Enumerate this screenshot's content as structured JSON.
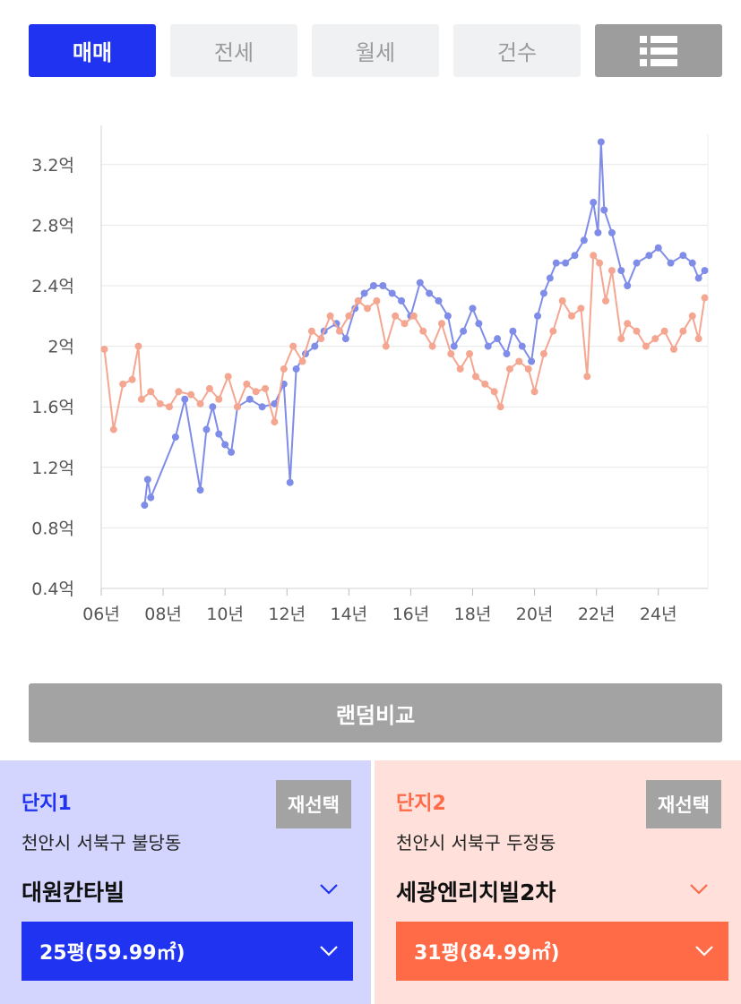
{
  "tabs": [
    {
      "label": "매매",
      "active": true
    },
    {
      "label": "전세",
      "active": false
    },
    {
      "label": "월세",
      "active": false
    },
    {
      "label": "건수",
      "active": false
    }
  ],
  "view_toggle_icon": "list-icon",
  "colors": {
    "accent_blue": "#1f33f0",
    "accent_orange": "#ff6a47",
    "series1_line": "#7f8ce8",
    "series2_line": "#f4a691"
  },
  "chart_data": {
    "type": "line",
    "title": "",
    "xlabel": "",
    "ylabel": "",
    "x_ticks": [
      "06년",
      "08년",
      "10년",
      "12년",
      "14년",
      "16년",
      "18년",
      "20년",
      "22년",
      "24년"
    ],
    "y_ticks": [
      "0.4억",
      "0.8억",
      "1.2억",
      "1.6억",
      "2억",
      "2.4억",
      "2.8억",
      "3.2억"
    ],
    "xlim": [
      2006.0,
      2025.6
    ],
    "ylim": [
      0.4,
      3.4
    ],
    "grid": true,
    "series": [
      {
        "name": "",
        "color": "#7f8ce8",
        "points": [
          [
            2007.4,
            0.95
          ],
          [
            2007.5,
            1.12
          ],
          [
            2007.6,
            1.0
          ],
          [
            2008.4,
            1.4
          ],
          [
            2008.7,
            1.65
          ],
          [
            2009.2,
            1.05
          ],
          [
            2009.4,
            1.45
          ],
          [
            2009.6,
            1.6
          ],
          [
            2009.8,
            1.42
          ],
          [
            2010.0,
            1.35
          ],
          [
            2010.2,
            1.3
          ],
          [
            2010.4,
            1.6
          ],
          [
            2010.8,
            1.65
          ],
          [
            2011.2,
            1.6
          ],
          [
            2011.6,
            1.62
          ],
          [
            2011.9,
            1.75
          ],
          [
            2012.1,
            1.1
          ],
          [
            2012.3,
            1.85
          ],
          [
            2012.6,
            1.95
          ],
          [
            2012.9,
            2.0
          ],
          [
            2013.2,
            2.1
          ],
          [
            2013.6,
            2.15
          ],
          [
            2013.9,
            2.05
          ],
          [
            2014.2,
            2.25
          ],
          [
            2014.5,
            2.35
          ],
          [
            2014.8,
            2.4
          ],
          [
            2015.1,
            2.4
          ],
          [
            2015.4,
            2.35
          ],
          [
            2015.7,
            2.3
          ],
          [
            2016.0,
            2.2
          ],
          [
            2016.3,
            2.42
          ],
          [
            2016.6,
            2.35
          ],
          [
            2016.9,
            2.3
          ],
          [
            2017.2,
            2.2
          ],
          [
            2017.4,
            2.0
          ],
          [
            2017.7,
            2.1
          ],
          [
            2018.0,
            2.25
          ],
          [
            2018.2,
            2.15
          ],
          [
            2018.5,
            2.0
          ],
          [
            2018.8,
            2.05
          ],
          [
            2019.1,
            1.95
          ],
          [
            2019.3,
            2.1
          ],
          [
            2019.6,
            2.0
          ],
          [
            2019.9,
            1.9
          ],
          [
            2020.1,
            2.2
          ],
          [
            2020.3,
            2.35
          ],
          [
            2020.5,
            2.45
          ],
          [
            2020.7,
            2.55
          ],
          [
            2021.0,
            2.55
          ],
          [
            2021.3,
            2.6
          ],
          [
            2021.6,
            2.7
          ],
          [
            2021.9,
            2.95
          ],
          [
            2022.05,
            2.75
          ],
          [
            2022.15,
            3.35
          ],
          [
            2022.25,
            2.9
          ],
          [
            2022.5,
            2.75
          ],
          [
            2022.8,
            2.5
          ],
          [
            2023.0,
            2.4
          ],
          [
            2023.3,
            2.55
          ],
          [
            2023.7,
            2.6
          ],
          [
            2024.0,
            2.65
          ],
          [
            2024.4,
            2.55
          ],
          [
            2024.8,
            2.6
          ],
          [
            2025.1,
            2.55
          ],
          [
            2025.3,
            2.45
          ],
          [
            2025.5,
            2.5
          ]
        ]
      },
      {
        "name": "",
        "color": "#f4a691",
        "points": [
          [
            2006.1,
            1.98
          ],
          [
            2006.4,
            1.45
          ],
          [
            2006.7,
            1.75
          ],
          [
            2007.0,
            1.78
          ],
          [
            2007.2,
            2.0
          ],
          [
            2007.3,
            1.65
          ],
          [
            2007.6,
            1.7
          ],
          [
            2007.9,
            1.62
          ],
          [
            2008.2,
            1.6
          ],
          [
            2008.5,
            1.7
          ],
          [
            2008.9,
            1.68
          ],
          [
            2009.2,
            1.62
          ],
          [
            2009.5,
            1.72
          ],
          [
            2009.8,
            1.65
          ],
          [
            2010.1,
            1.8
          ],
          [
            2010.4,
            1.6
          ],
          [
            2010.7,
            1.75
          ],
          [
            2011.0,
            1.7
          ],
          [
            2011.3,
            1.72
          ],
          [
            2011.6,
            1.5
          ],
          [
            2011.9,
            1.85
          ],
          [
            2012.2,
            2.0
          ],
          [
            2012.5,
            1.9
          ],
          [
            2012.8,
            2.1
          ],
          [
            2013.1,
            2.05
          ],
          [
            2013.4,
            2.2
          ],
          [
            2013.7,
            2.1
          ],
          [
            2014.0,
            2.2
          ],
          [
            2014.3,
            2.3
          ],
          [
            2014.6,
            2.25
          ],
          [
            2014.9,
            2.3
          ],
          [
            2015.2,
            2.0
          ],
          [
            2015.5,
            2.2
          ],
          [
            2015.8,
            2.15
          ],
          [
            2016.1,
            2.2
          ],
          [
            2016.4,
            2.1
          ],
          [
            2016.7,
            2.0
          ],
          [
            2017.0,
            2.15
          ],
          [
            2017.3,
            1.95
          ],
          [
            2017.6,
            1.85
          ],
          [
            2017.9,
            1.95
          ],
          [
            2018.1,
            1.8
          ],
          [
            2018.4,
            1.75
          ],
          [
            2018.7,
            1.7
          ],
          [
            2018.9,
            1.6
          ],
          [
            2019.2,
            1.85
          ],
          [
            2019.5,
            1.9
          ],
          [
            2019.8,
            1.85
          ],
          [
            2020.0,
            1.7
          ],
          [
            2020.3,
            1.95
          ],
          [
            2020.6,
            2.1
          ],
          [
            2020.9,
            2.3
          ],
          [
            2021.2,
            2.2
          ],
          [
            2021.5,
            2.25
          ],
          [
            2021.7,
            1.8
          ],
          [
            2021.9,
            2.6
          ],
          [
            2022.1,
            2.55
          ],
          [
            2022.3,
            2.3
          ],
          [
            2022.5,
            2.5
          ],
          [
            2022.8,
            2.05
          ],
          [
            2023.0,
            2.15
          ],
          [
            2023.3,
            2.1
          ],
          [
            2023.6,
            2.0
          ],
          [
            2023.9,
            2.05
          ],
          [
            2024.2,
            2.1
          ],
          [
            2024.5,
            1.98
          ],
          [
            2024.8,
            2.1
          ],
          [
            2025.1,
            2.2
          ],
          [
            2025.3,
            2.05
          ],
          [
            2025.5,
            2.32
          ]
        ]
      }
    ]
  },
  "compare_button": "랜덤비교",
  "complex1": {
    "title": "단지1",
    "reselect": "재선택",
    "address": "천안시 서북구 불당동",
    "name": "대원칸타빌",
    "size": "25평(59.99㎡)"
  },
  "complex2": {
    "title": "단지2",
    "reselect": "재선택",
    "address": "천안시 서북구 두정동",
    "name": "세광엔리치빌2차",
    "size": "31평(84.99㎡)"
  }
}
